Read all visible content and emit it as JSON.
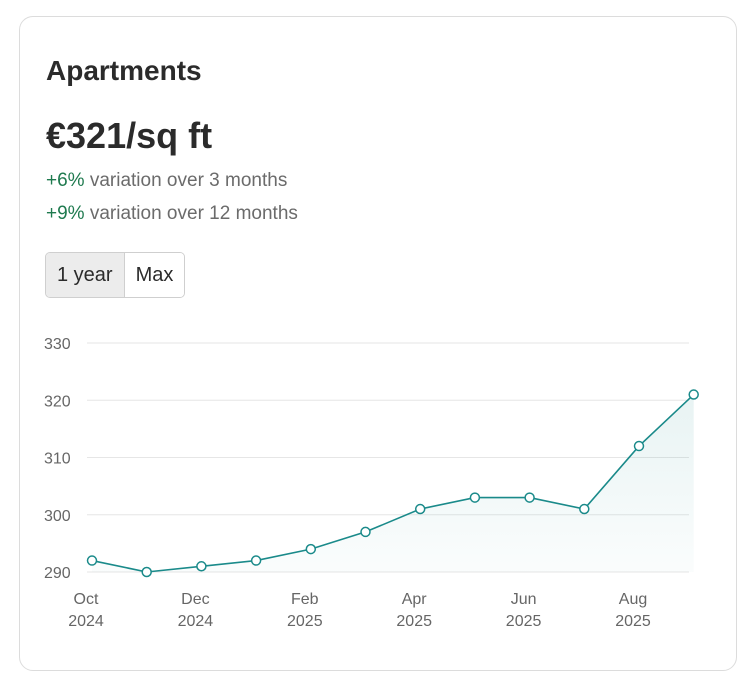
{
  "header": {
    "title": "Apartments",
    "price": "€321/sq ft",
    "variations": [
      {
        "pct": "+6%",
        "text": " variation over 3 months"
      },
      {
        "pct": "+9%",
        "text": " variation over 12 months"
      }
    ]
  },
  "range_toggle": {
    "options": [
      "1 year",
      "Max"
    ],
    "selected": "1 year"
  },
  "colors": {
    "line": "#1a8a8a",
    "positive": "#1f7a4f",
    "grid": "#e6e6e6"
  },
  "chart_data": {
    "type": "line",
    "x": [
      "2024-10",
      "2024-11",
      "2024-12",
      "2025-01",
      "2025-02",
      "2025-03",
      "2025-04",
      "2025-05",
      "2025-06",
      "2025-07",
      "2025-08",
      "2025-09"
    ],
    "series": [
      {
        "values": [
          292,
          290,
          291,
          292,
          294,
          297,
          301,
          303,
          303,
          301,
          312,
          321
        ]
      }
    ],
    "x_tick_labels": [
      {
        "index": 0,
        "month": "Oct",
        "year": "2024"
      },
      {
        "index": 2,
        "month": "Dec",
        "year": "2024"
      },
      {
        "index": 4,
        "month": "Feb",
        "year": "2025"
      },
      {
        "index": 6,
        "month": "Apr",
        "year": "2025"
      },
      {
        "index": 8,
        "month": "Jun",
        "year": "2025"
      },
      {
        "index": 10,
        "month": "Aug",
        "year": "2025"
      }
    ],
    "y_ticks": [
      290,
      300,
      310,
      320,
      330
    ],
    "ylim": [
      290,
      330
    ],
    "grid": true,
    "area_fill": true,
    "title": "",
    "xlabel": "",
    "ylabel": ""
  }
}
